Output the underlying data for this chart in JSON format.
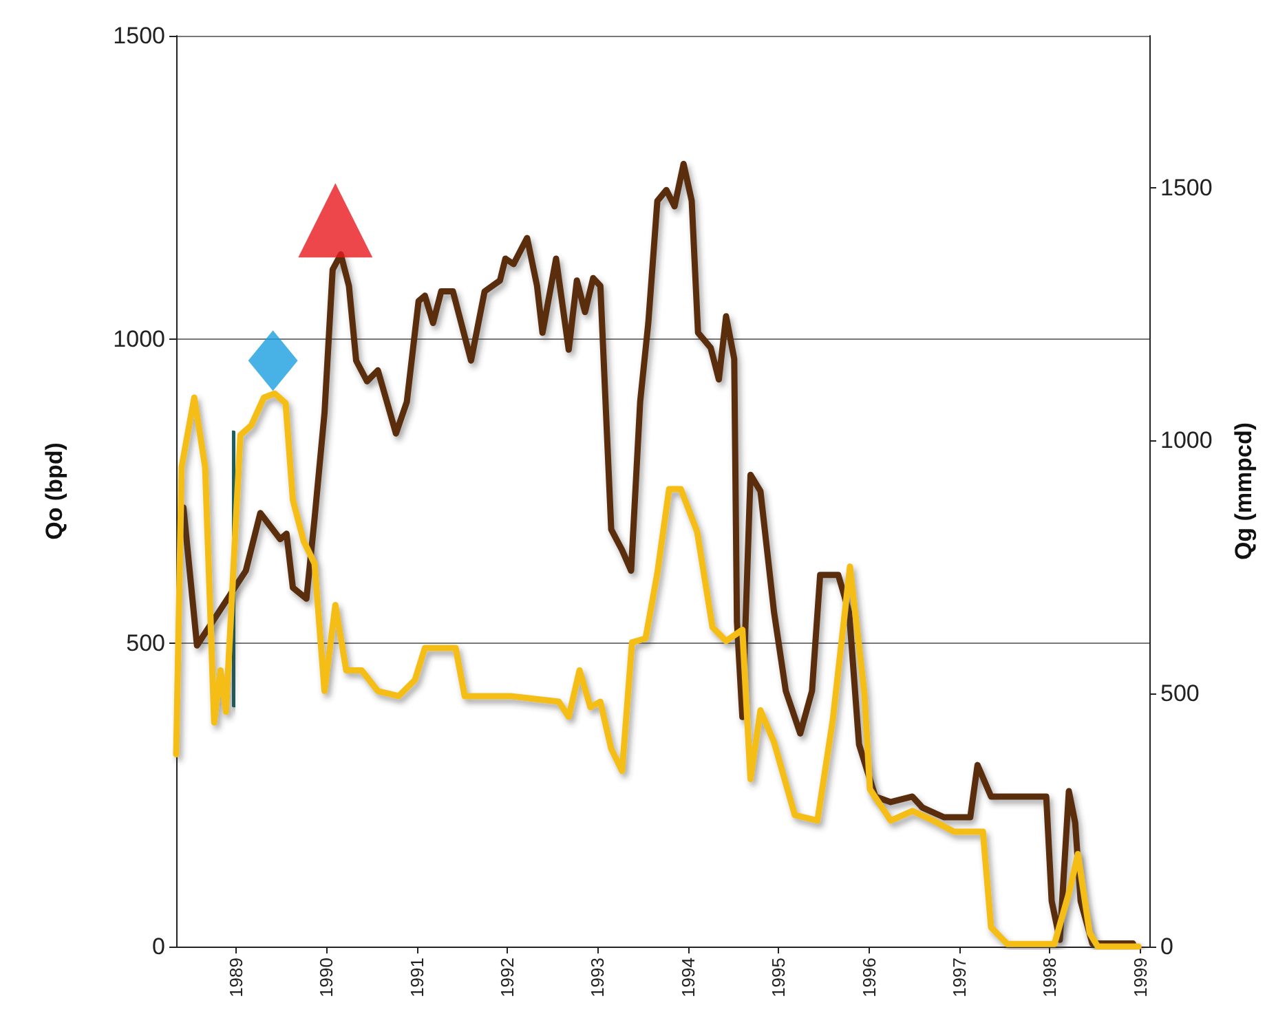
{
  "chart_data": {
    "type": "line",
    "ylabel": "Qo (bpd)",
    "y2label": "Qg (mmpcd)",
    "xlim": [
      1988.34,
      1999.1
    ],
    "xticks": [
      1989,
      1990,
      1991,
      1992,
      1993,
      1994,
      1995,
      1996,
      1997,
      1998,
      1999
    ],
    "ylim": [
      0,
      1500
    ],
    "yticks": [
      0,
      500,
      1000,
      1500
    ],
    "y2lim": [
      0,
      1800
    ],
    "y2ticks": [
      0,
      500,
      1000,
      1500
    ],
    "grid": "y",
    "marker": "none",
    "line_style": "solid",
    "series": [
      {
        "color": "#5a2d0c",
        "x": [
          1988.42,
          1988.57,
          1989.11,
          1989.27,
          1989.49,
          1989.56,
          1989.63,
          1989.78,
          1989.87,
          1989.98,
          1990.07,
          1990.16,
          1990.25,
          1990.33,
          1990.45,
          1990.57,
          1990.77,
          1990.89,
          1991.02,
          1991.09,
          1991.18,
          1991.27,
          1991.4,
          1991.6,
          1991.75,
          1991.92,
          1991.98,
          1992.07,
          1992.22,
          1992.33,
          1992.39,
          1992.54,
          1992.68,
          1992.77,
          1992.86,
          1992.95,
          1993.03,
          1993.15,
          1993.27,
          1993.37,
          1993.47,
          1993.56,
          1993.66,
          1993.76,
          1993.85,
          1993.95,
          1994.04,
          1994.11,
          1994.25,
          1994.34,
          1994.42,
          1994.51,
          1994.54,
          1994.6,
          1994.69,
          1994.8,
          1994.95,
          1995.08,
          1995.24,
          1995.37,
          1995.46,
          1995.66,
          1995.78,
          1995.89,
          1996.07,
          1996.24,
          1996.48,
          1996.59,
          1996.83,
          1997.12,
          1997.2,
          1997.35,
          1997.96,
          1998.02,
          1998.11,
          1998.21,
          1998.28,
          1998.34,
          1998.47,
          1998.92
        ],
        "values": [
          723,
          496,
          619,
          714,
          671,
          680,
          591,
          573,
          705,
          879,
          1115,
          1140,
          1088,
          965,
          931,
          949,
          845,
          897,
          1063,
          1072,
          1027,
          1079,
          1079,
          965,
          1079,
          1097,
          1133,
          1124,
          1167,
          1088,
          1011,
          1133,
          983,
          1097,
          1045,
          1101,
          1088,
          687,
          653,
          619,
          897,
          1027,
          1228,
          1246,
          1219,
          1289,
          1228,
          1011,
          986,
          934,
          1038,
          968,
          535,
          378,
          777,
          750,
          551,
          421,
          351,
          421,
          612,
          612,
          551,
          333,
          247,
          238,
          247,
          229,
          213,
          213,
          299,
          247,
          247,
          75,
          11,
          256,
          204,
          75,
          5,
          5
        ]
      },
      {
        "color": "#1f5f5f",
        "x": [
          1988.97,
          1988.98
        ],
        "values": [
          845,
          399
        ]
      },
      {
        "color": "#f5be16",
        "axis": "y2",
        "x": [
          1988.34,
          1988.4,
          1988.54,
          1988.66,
          1988.76,
          1988.83,
          1988.89,
          1989.05,
          1989.17,
          1989.31,
          1989.43,
          1989.55,
          1989.63,
          1989.75,
          1989.87,
          1989.98,
          1990.1,
          1990.22,
          1990.39,
          1990.57,
          1990.8,
          1990.98,
          1991.09,
          1991.43,
          1991.53,
          1992.04,
          1992.57,
          1992.68,
          1992.8,
          1992.92,
          1993.03,
          1993.15,
          1993.27,
          1993.38,
          1993.53,
          1993.66,
          1993.79,
          1993.92,
          1994.1,
          1994.27,
          1994.42,
          1994.6,
          1994.69,
          1994.8,
          1994.95,
          1995.18,
          1995.43,
          1995.6,
          1995.79,
          1995.95,
          1996.01,
          1996.24,
          1996.48,
          1996.71,
          1996.94,
          1997.26,
          1997.35,
          1997.53,
          1998.05,
          1998.22,
          1998.31,
          1998.44,
          1998.53,
          1998.98
        ],
        "values": [
          380,
          948,
          1085,
          948,
          443,
          546,
          464,
          1011,
          1030,
          1085,
          1093,
          1074,
          883,
          801,
          757,
          505,
          675,
          546,
          546,
          505,
          495,
          527,
          590,
          590,
          495,
          495,
          484,
          454,
          546,
          473,
          484,
          391,
          347,
          601,
          609,
          738,
          904,
          904,
          820,
          631,
          604,
          626,
          331,
          467,
          404,
          260,
          249,
          448,
          751,
          500,
          311,
          249,
          268,
          249,
          227,
          227,
          38,
          5,
          5,
          112,
          183,
          27,
          0,
          0
        ]
      },
      {
        "type": "scatter",
        "marker": "diamond",
        "color": "#1a9fe0",
        "x": [
          1989.41
        ],
        "values": [
          965
        ]
      },
      {
        "type": "scatter",
        "marker": "triangle",
        "color": "#e8181e",
        "x": [
          1990.1
        ],
        "values": [
          1196
        ]
      }
    ]
  }
}
